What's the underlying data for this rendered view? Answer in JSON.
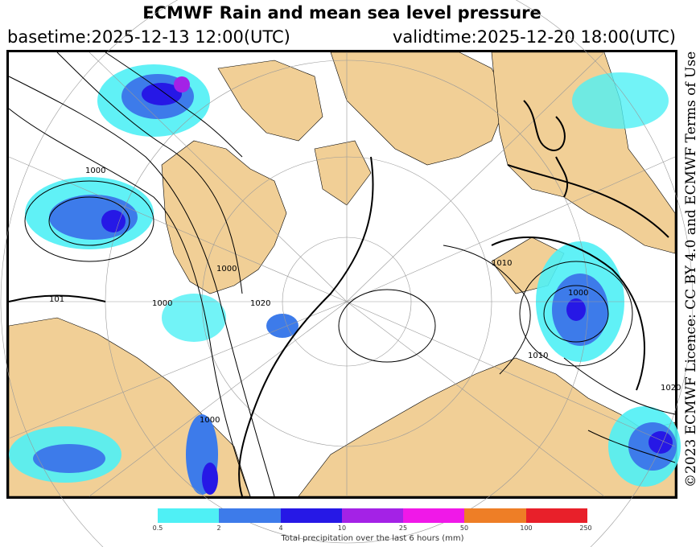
{
  "title": "ECMWF Rain and mean sea level pressure",
  "basetime": "basetime:2025-12-13 12:00(UTC)",
  "validtime": "validtime:2025-12-20 18:00(UTC)",
  "licence": "©2023 ECMWF Licence: CC BY 4.0 and ECMWF Terms of Use",
  "isobar_labels": [
    "1000",
    "1000",
    "1010",
    "1000",
    "1000",
    "1010",
    "1000",
    "1020",
    "1020",
    "101"
  ],
  "legend": {
    "caption": "Total precipitation over the last 6 hours (mm)",
    "ticks": [
      "0.5",
      "2",
      "4",
      "10",
      "25",
      "50",
      "100",
      "250"
    ],
    "colors": [
      "#4ff0f5",
      "#3d7bea",
      "#2618e6",
      "#a422e6",
      "#f018e8",
      "#ee7e26",
      "#e8202a"
    ]
  },
  "map_colors": {
    "land": "#f1cf96",
    "sea": "#ffffff",
    "isobar": "#000000"
  }
}
